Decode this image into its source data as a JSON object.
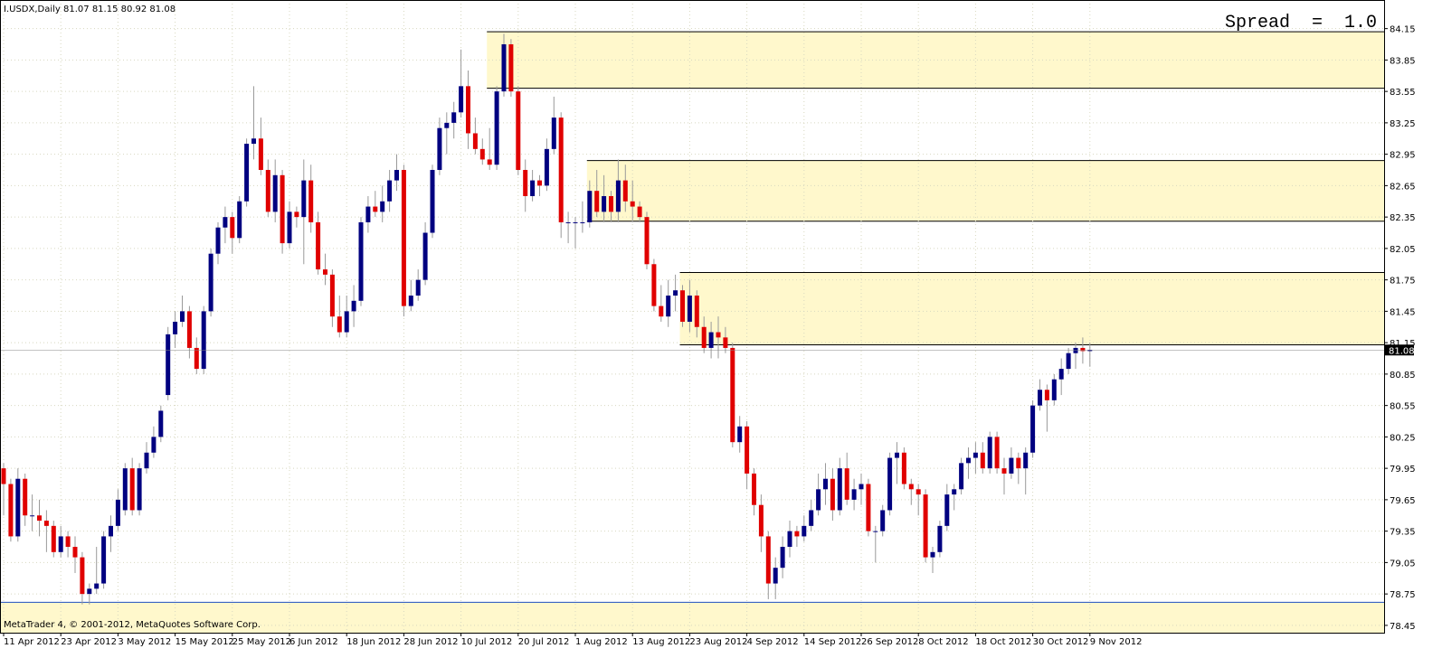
{
  "chart_data": {
    "type": "candlestick",
    "header": "I.USDX,Daily 81.07 81.15 80.92 81.08",
    "spread_label": "Spread  =  1.0",
    "footer": "MetaTrader 4, © 2001-2012, MetaQuotes Software Corp.",
    "up_color": "#000080",
    "down_color": "#e00000",
    "wick_color": "#9a9a9a",
    "zone_color": "#fff8cc",
    "grid": true,
    "ylim": [
      78.38,
      84.38
    ],
    "yticks": [
      {
        "value": 84.15,
        "label": "84.15"
      },
      {
        "value": 83.85,
        "label": "83.85"
      },
      {
        "value": 83.55,
        "label": "83.55"
      },
      {
        "value": 83.25,
        "label": "83.25"
      },
      {
        "value": 82.95,
        "label": "82.95"
      },
      {
        "value": 82.65,
        "label": "82.65"
      },
      {
        "value": 82.35,
        "label": "82.35"
      },
      {
        "value": 82.05,
        "label": "82.05"
      },
      {
        "value": 81.75,
        "label": "81.75"
      },
      {
        "value": 81.45,
        "label": "81.45"
      },
      {
        "value": 81.15,
        "label": "81.15"
      },
      {
        "value": 80.85,
        "label": "80.85"
      },
      {
        "value": 80.55,
        "label": "80.55"
      },
      {
        "value": 80.25,
        "label": "80.25"
      },
      {
        "value": 79.95,
        "label": "79.95"
      },
      {
        "value": 79.65,
        "label": "79.65"
      },
      {
        "value": 79.35,
        "label": "79.35"
      },
      {
        "value": 79.05,
        "label": "79.05"
      },
      {
        "value": 78.75,
        "label": "78.75"
      },
      {
        "value": 78.45,
        "label": "78.45"
      }
    ],
    "date_labels": [
      {
        "index": 0,
        "label": "11 Apr 2012"
      },
      {
        "index": 8,
        "label": "23 Apr 2012"
      },
      {
        "index": 16,
        "label": "3 May 2012"
      },
      {
        "index": 24,
        "label": "15 May 2012"
      },
      {
        "index": 32,
        "label": "25 May 2012"
      },
      {
        "index": 40,
        "label": "6 Jun 2012"
      },
      {
        "index": 48,
        "label": "18 Jun 2012"
      },
      {
        "index": 56,
        "label": "28 Jun 2012"
      },
      {
        "index": 64,
        "label": "10 Jul 2012"
      },
      {
        "index": 72,
        "label": "20 Jul 2012"
      },
      {
        "index": 80,
        "label": "1 Aug 2012"
      },
      {
        "index": 88,
        "label": "13 Aug 2012"
      },
      {
        "index": 96,
        "label": "23 Aug 2012"
      },
      {
        "index": 104,
        "label": "4 Sep 2012"
      },
      {
        "index": 112,
        "label": "14 Sep 2012"
      },
      {
        "index": 120,
        "label": "26 Sep 2012"
      },
      {
        "index": 128,
        "label": "8 Oct 2012"
      },
      {
        "index": 136,
        "label": "18 Oct 2012"
      },
      {
        "index": 144,
        "label": "30 Oct 2012"
      },
      {
        "index": 152,
        "label": "9 Nov 2012"
      }
    ],
    "zones": [
      {
        "start_index": 68,
        "top": 84.12,
        "bottom": 83.58,
        "line_color": "#000000"
      },
      {
        "start_index": 82,
        "top": 82.89,
        "bottom": 82.31,
        "line_color": "#000000"
      },
      {
        "start_index": 95,
        "top": 81.82,
        "bottom": 81.13,
        "line_color": "#000000"
      },
      {
        "start_index": 0,
        "top": 78.67,
        "bottom": 78.38,
        "line_color": "#2050c0"
      }
    ],
    "ohlc": [
      [
        79.95,
        80.0,
        79.5,
        79.8
      ],
      [
        79.8,
        79.85,
        79.25,
        79.3
      ],
      [
        79.3,
        79.95,
        79.25,
        79.85
      ],
      [
        79.85,
        79.9,
        79.4,
        79.5
      ],
      [
        79.5,
        79.7,
        79.35,
        79.5
      ],
      [
        79.5,
        79.65,
        79.3,
        79.45
      ],
      [
        79.45,
        79.55,
        79.15,
        79.4
      ],
      [
        79.4,
        79.45,
        79.1,
        79.15
      ],
      [
        79.15,
        79.4,
        79.1,
        79.3
      ],
      [
        79.3,
        79.35,
        79.1,
        79.2
      ],
      [
        79.2,
        79.3,
        78.95,
        79.1
      ],
      [
        79.1,
        79.15,
        78.65,
        78.75
      ],
      [
        78.75,
        78.85,
        78.65,
        78.8
      ],
      [
        78.8,
        79.2,
        78.75,
        78.85
      ],
      [
        78.85,
        79.35,
        78.8,
        79.3
      ],
      [
        79.3,
        79.5,
        79.15,
        79.4
      ],
      [
        79.4,
        79.75,
        79.35,
        79.65
      ],
      [
        79.55,
        80.0,
        79.5,
        79.95
      ],
      [
        79.95,
        80.05,
        79.5,
        79.55
      ],
      [
        79.55,
        80.0,
        79.5,
        79.95
      ],
      [
        79.95,
        80.2,
        79.9,
        80.1
      ],
      [
        80.1,
        80.35,
        80.05,
        80.25
      ],
      [
        80.25,
        80.55,
        80.2,
        80.5
      ],
      [
        80.65,
        81.3,
        80.6,
        81.23
      ],
      [
        81.23,
        81.45,
        81.1,
        81.35
      ],
      [
        81.35,
        81.6,
        81.3,
        81.45
      ],
      [
        81.45,
        81.5,
        81.0,
        81.1
      ],
      [
        81.1,
        81.2,
        80.85,
        80.9
      ],
      [
        80.9,
        81.5,
        80.85,
        81.45
      ],
      [
        81.45,
        82.05,
        81.4,
        82.0
      ],
      [
        82.0,
        82.3,
        81.9,
        82.25
      ],
      [
        82.25,
        82.45,
        82.1,
        82.35
      ],
      [
        82.35,
        82.4,
        82.0,
        82.15
      ],
      [
        82.15,
        82.55,
        82.1,
        82.5
      ],
      [
        82.5,
        83.1,
        82.45,
        83.05
      ],
      [
        83.05,
        83.6,
        82.9,
        83.1
      ],
      [
        83.1,
        83.3,
        82.75,
        82.8
      ],
      [
        82.8,
        82.9,
        82.35,
        82.4
      ],
      [
        82.4,
        82.9,
        82.3,
        82.75
      ],
      [
        82.75,
        82.8,
        82.0,
        82.1
      ],
      [
        82.1,
        82.5,
        82.05,
        82.4
      ],
      [
        82.4,
        82.45,
        82.25,
        82.35
      ],
      [
        82.35,
        82.9,
        81.9,
        82.7
      ],
      [
        82.7,
        82.85,
        82.2,
        82.3
      ],
      [
        82.3,
        82.4,
        81.8,
        81.85
      ],
      [
        81.85,
        82.0,
        81.7,
        81.8
      ],
      [
        81.8,
        81.85,
        81.3,
        81.4
      ],
      [
        81.4,
        81.6,
        81.2,
        81.25
      ],
      [
        81.25,
        81.6,
        81.2,
        81.45
      ],
      [
        81.45,
        81.7,
        81.3,
        81.55
      ],
      [
        81.55,
        82.35,
        81.5,
        82.3
      ],
      [
        82.3,
        82.55,
        82.2,
        82.45
      ],
      [
        82.45,
        82.6,
        82.35,
        82.4
      ],
      [
        82.4,
        82.65,
        82.3,
        82.5
      ],
      [
        82.5,
        82.8,
        82.4,
        82.7
      ],
      [
        82.7,
        82.95,
        82.6,
        82.8
      ],
      [
        82.8,
        82.85,
        81.4,
        81.5
      ],
      [
        81.5,
        81.75,
        81.45,
        81.6
      ],
      [
        81.6,
        81.85,
        81.55,
        81.75
      ],
      [
        81.75,
        82.3,
        81.7,
        82.2
      ],
      [
        82.2,
        82.85,
        82.15,
        82.8
      ],
      [
        82.8,
        83.3,
        82.75,
        83.2
      ],
      [
        83.2,
        83.35,
        82.95,
        83.25
      ],
      [
        83.25,
        83.45,
        83.1,
        83.35
      ],
      [
        83.35,
        83.95,
        83.3,
        83.6
      ],
      [
        83.6,
        83.75,
        83.0,
        83.15
      ],
      [
        83.15,
        83.3,
        82.95,
        83.0
      ],
      [
        83.0,
        83.1,
        82.85,
        82.9
      ],
      [
        82.9,
        83.2,
        82.8,
        82.85
      ],
      [
        82.85,
        83.6,
        82.8,
        83.55
      ],
      [
        83.55,
        84.1,
        83.5,
        84.0
      ],
      [
        84.0,
        84.05,
        83.5,
        83.55
      ],
      [
        83.55,
        83.6,
        82.75,
        82.8
      ],
      [
        82.8,
        82.9,
        82.4,
        82.55
      ],
      [
        82.55,
        82.8,
        82.5,
        82.7
      ],
      [
        82.7,
        82.75,
        82.55,
        82.65
      ],
      [
        82.65,
        83.1,
        82.6,
        83.0
      ],
      [
        83.0,
        83.5,
        82.95,
        83.3
      ],
      [
        83.3,
        83.35,
        82.15,
        82.3
      ],
      [
        82.3,
        82.4,
        82.1,
        82.3
      ],
      [
        82.3,
        82.35,
        82.05,
        82.3
      ],
      [
        82.3,
        82.5,
        82.2,
        82.3
      ],
      [
        82.3,
        82.7,
        82.25,
        82.6
      ],
      [
        82.6,
        82.8,
        82.35,
        82.4
      ],
      [
        82.4,
        82.75,
        82.3,
        82.55
      ],
      [
        82.55,
        82.6,
        82.3,
        82.4
      ],
      [
        82.4,
        82.9,
        82.3,
        82.7
      ],
      [
        82.7,
        82.85,
        82.4,
        82.5
      ],
      [
        82.5,
        82.7,
        82.3,
        82.45
      ],
      [
        82.45,
        82.5,
        82.3,
        82.35
      ],
      [
        82.35,
        82.4,
        81.85,
        81.9
      ],
      [
        81.9,
        81.95,
        81.45,
        81.5
      ],
      [
        81.5,
        81.7,
        81.35,
        81.4
      ],
      [
        81.4,
        81.75,
        81.3,
        81.6
      ],
      [
        81.6,
        81.8,
        81.45,
        81.65
      ],
      [
        81.65,
        81.7,
        81.3,
        81.35
      ],
      [
        81.35,
        81.75,
        81.25,
        81.6
      ],
      [
        81.6,
        81.65,
        81.2,
        81.3
      ],
      [
        81.3,
        81.4,
        81.05,
        81.1
      ],
      [
        81.1,
        81.35,
        81.0,
        81.25
      ],
      [
        81.25,
        81.4,
        81.0,
        81.2
      ],
      [
        81.2,
        81.3,
        81.05,
        81.1
      ],
      [
        81.1,
        81.15,
        80.15,
        80.2
      ],
      [
        80.2,
        80.45,
        80.1,
        80.35
      ],
      [
        80.35,
        80.4,
        79.75,
        79.9
      ],
      [
        79.9,
        79.95,
        79.5,
        79.6
      ],
      [
        79.6,
        79.7,
        79.15,
        79.3
      ],
      [
        79.3,
        79.35,
        78.7,
        78.85
      ],
      [
        78.85,
        79.1,
        78.7,
        79.0
      ],
      [
        79.0,
        79.3,
        78.9,
        79.2
      ],
      [
        79.2,
        79.45,
        79.1,
        79.35
      ],
      [
        79.35,
        79.4,
        79.2,
        79.3
      ],
      [
        79.3,
        79.5,
        79.25,
        79.4
      ],
      [
        79.4,
        79.65,
        79.35,
        79.55
      ],
      [
        79.55,
        79.9,
        79.5,
        79.75
      ],
      [
        79.75,
        80.0,
        79.6,
        79.85
      ],
      [
        79.85,
        79.95,
        79.45,
        79.55
      ],
      [
        79.55,
        80.05,
        79.5,
        79.95
      ],
      [
        79.95,
        80.1,
        79.6,
        79.65
      ],
      [
        79.65,
        79.85,
        79.55,
        79.75
      ],
      [
        79.75,
        79.9,
        79.6,
        79.8
      ],
      [
        79.8,
        79.85,
        79.3,
        79.35
      ],
      [
        79.35,
        79.4,
        79.05,
        79.35
      ],
      [
        79.35,
        79.6,
        79.3,
        79.55
      ],
      [
        79.55,
        80.1,
        79.5,
        80.05
      ],
      [
        80.05,
        80.2,
        79.8,
        80.1
      ],
      [
        80.1,
        80.15,
        79.75,
        79.8
      ],
      [
        79.8,
        79.85,
        79.6,
        79.75
      ],
      [
        79.75,
        79.8,
        79.5,
        79.7
      ],
      [
        79.7,
        79.75,
        79.05,
        79.1
      ],
      [
        79.1,
        79.2,
        78.95,
        79.15
      ],
      [
        79.15,
        79.45,
        79.1,
        79.4
      ],
      [
        79.4,
        79.8,
        79.35,
        79.7
      ],
      [
        79.7,
        79.8,
        79.55,
        79.75
      ],
      [
        79.75,
        80.05,
        79.7,
        80.0
      ],
      [
        80.0,
        80.15,
        79.85,
        80.05
      ],
      [
        80.05,
        80.2,
        79.9,
        80.1
      ],
      [
        80.1,
        80.2,
        79.9,
        79.95
      ],
      [
        79.95,
        80.3,
        79.9,
        80.25
      ],
      [
        80.25,
        80.3,
        79.9,
        79.95
      ],
      [
        79.95,
        80.05,
        79.7,
        79.9
      ],
      [
        79.9,
        80.15,
        79.85,
        80.05
      ],
      [
        80.05,
        80.1,
        79.8,
        79.95
      ],
      [
        79.95,
        80.15,
        79.7,
        80.1
      ],
      [
        80.1,
        80.6,
        80.05,
        80.55
      ],
      [
        80.55,
        80.8,
        80.5,
        80.7
      ],
      [
        80.7,
        80.75,
        80.3,
        80.6
      ],
      [
        80.6,
        80.85,
        80.55,
        80.8
      ],
      [
        80.8,
        81.0,
        80.65,
        80.9
      ],
      [
        80.9,
        81.1,
        80.85,
        81.05
      ],
      [
        81.05,
        81.15,
        80.9,
        81.1
      ],
      [
        81.1,
        81.2,
        80.95,
        81.07
      ],
      [
        81.07,
        81.15,
        80.92,
        81.08
      ]
    ]
  }
}
